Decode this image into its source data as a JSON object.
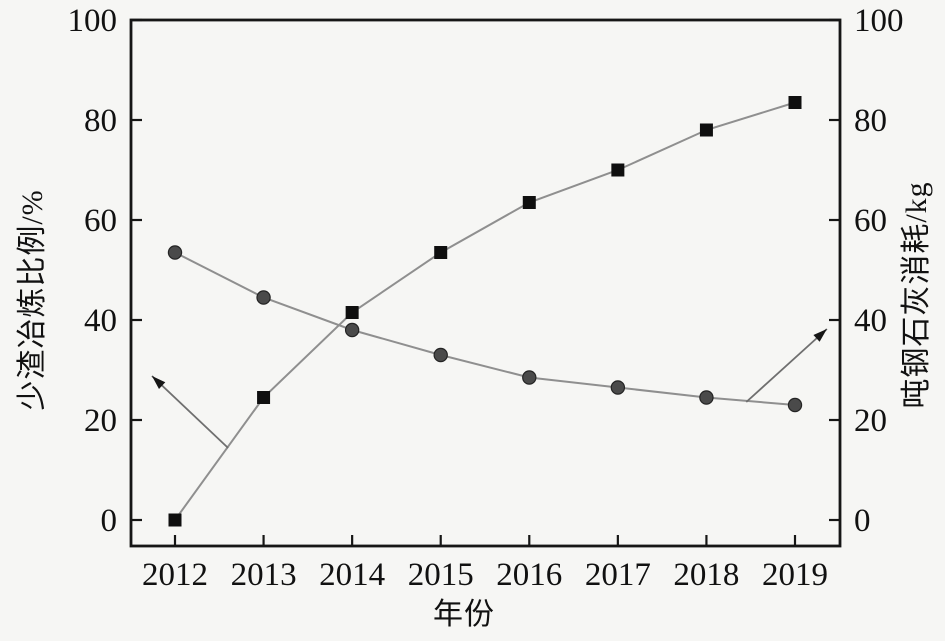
{
  "figure": {
    "background_color": "#f6f6f4",
    "axis_color": "#161616",
    "tick_label_color": "#111111"
  },
  "chart_data": {
    "type": "line",
    "title": "",
    "xlabel": "年份",
    "ylabel_left": "少渣冶炼比例/%",
    "ylabel_right": "吨钢石灰消耗/kg",
    "x": [
      2012,
      2013,
      2014,
      2015,
      2016,
      2017,
      2018,
      2019
    ],
    "series": [
      {
        "name": "少渣冶炼比例",
        "axis": "left",
        "marker": "square",
        "marker_color": "#0f0f0f",
        "line_color": "#8f8f8f",
        "values": [
          0,
          24.5,
          41.5,
          53.5,
          63.5,
          70,
          78,
          83.5
        ]
      },
      {
        "name": "吨钢石灰消耗",
        "axis": "right",
        "marker": "circle",
        "marker_color": "#4a4a4a",
        "line_color": "#8f8f8f",
        "values": [
          53.5,
          44.5,
          38,
          33,
          28.5,
          26.5,
          24.5,
          23
        ]
      }
    ],
    "yticks": [
      0,
      20,
      40,
      60,
      80,
      100
    ],
    "ylim_left": [
      0,
      100
    ],
    "ylim_right": [
      0,
      100
    ],
    "grid": false,
    "legend": "none",
    "annotations": [
      {
        "type": "arrow",
        "series": "少渣冶炼比例",
        "points_to": "left-axis",
        "from": [
          2012.6,
          14.4
        ],
        "to": [
          2011.74,
          28.8
        ]
      },
      {
        "type": "arrow",
        "series": "吨钢石灰消耗",
        "points_to": "right-axis",
        "from": [
          2018.45,
          23.6
        ],
        "to": [
          2019.36,
          38.2
        ]
      }
    ]
  }
}
